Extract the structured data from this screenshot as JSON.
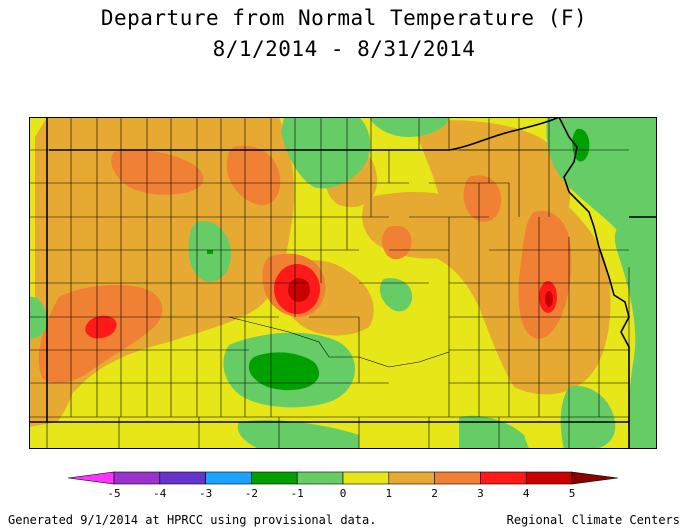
{
  "title": "Departure from Normal Temperature (F)",
  "subtitle": "8/1/2014 - 8/31/2014",
  "legend": {
    "ticks": [
      "-5",
      "-4",
      "-3",
      "-2",
      "-1",
      "0",
      "1",
      "2",
      "3",
      "4",
      "5"
    ],
    "colors": [
      "#ff33ff",
      "#9933cc",
      "#6633cc",
      "#1aa3ff",
      "#00a000",
      "#66cc66",
      "#e6e619",
      "#e6aa33",
      "#f08033",
      "#ff1a1a",
      "#c80000",
      "#8b0000"
    ]
  },
  "colors": {
    "base_yellow": "#e6e619",
    "orange": "#e6aa33",
    "dark_orange": "#f08033",
    "red": "#ff1a1a",
    "dark_red": "#c80000",
    "light_green": "#66cc66",
    "green": "#00a000"
  },
  "footer": {
    "left": "Generated 9/1/2014 at HPRCC using provisional data.",
    "right": "Regional Climate Centers"
  }
}
